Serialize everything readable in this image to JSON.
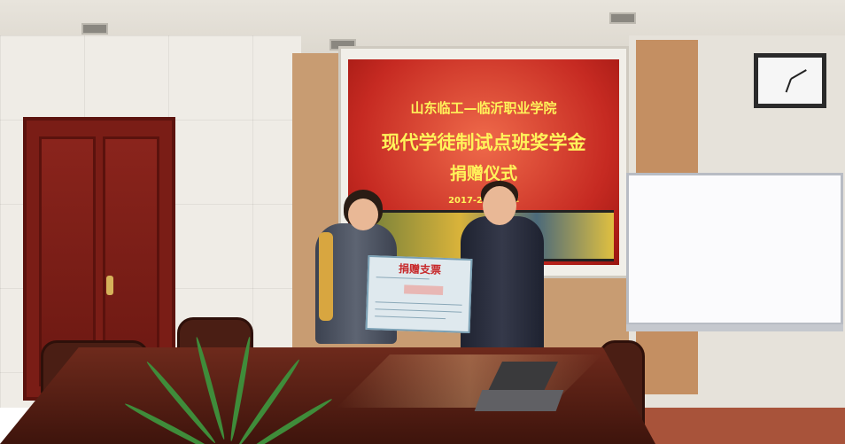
{
  "slide": {
    "line1": "山东临工—临沂职业学院",
    "line2": "现代学徒制试点班奖学金",
    "line3": "捐赠仪式",
    "line4": "2017-2018学年"
  },
  "cheque": {
    "title": "捐赠支票"
  },
  "colors": {
    "slide_red": "#c62a22",
    "slide_text": "#fff35a",
    "cheque_title": "#c7282a",
    "door": "#7a1d16",
    "wall_panel": "#c89c72"
  }
}
